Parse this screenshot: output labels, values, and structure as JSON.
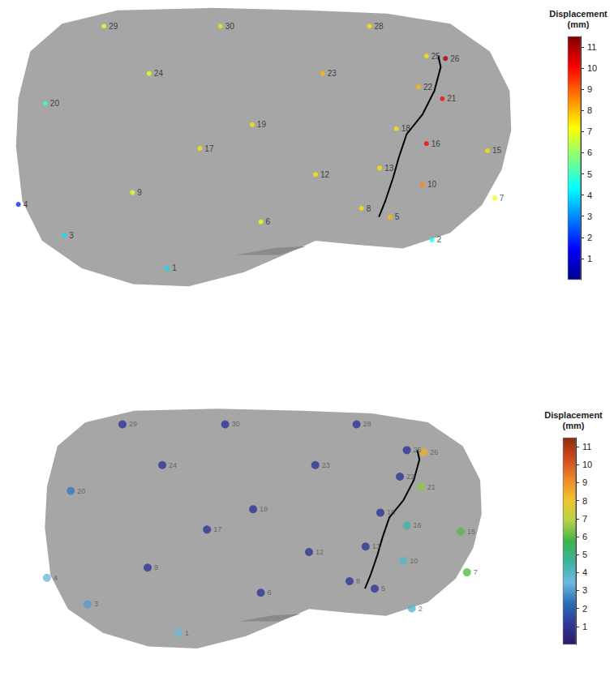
{
  "chart_data": [
    {
      "type": "scatter",
      "points": [
        1,
        2,
        3,
        4,
        5,
        6,
        7,
        8,
        9,
        10,
        12,
        13,
        15,
        16,
        17,
        18,
        19,
        20,
        21,
        22,
        23,
        24,
        25,
        26,
        28,
        29,
        30
      ],
      "x": [
        203,
        537,
        73,
        15,
        484,
        321,
        616,
        448,
        159,
        525,
        390,
        471,
        607,
        530,
        244,
        492,
        310,
        49,
        550,
        520,
        399,
        180,
        530,
        554,
        458,
        123,
        270
      ],
      "y": [
        35,
        71,
        77,
        116,
        100,
        94,
        124,
        111,
        131,
        141,
        154,
        162,
        184,
        193,
        187,
        212,
        217,
        244,
        250,
        265,
        282,
        282,
        304,
        301,
        342,
        342,
        342
      ],
      "values": [
        4,
        4.5,
        4,
        2,
        8,
        7,
        7,
        7.5,
        7,
        8.5,
        7.5,
        7.5,
        7.5,
        10,
        7.5,
        7.5,
        7.5,
        5,
        10,
        8,
        8,
        7,
        7.5,
        11,
        7.5,
        7,
        7.5
      ],
      "xlim": [
        0,
        650
      ],
      "ylim": [
        0,
        370
      ],
      "tick_labels": false,
      "grid": false,
      "color_bar": {
        "title": "Displacement (mm)",
        "range": [
          0,
          11.5
        ],
        "ticks": [
          1,
          2,
          3,
          4,
          5,
          6,
          7,
          8,
          9,
          10,
          11
        ],
        "colors": [
          "#00008f",
          "#0000ff",
          "#0080ff",
          "#00ffff",
          "#80ff80",
          "#ffff00",
          "#ff8000",
          "#ff0000",
          "#800000"
        ]
      }
    },
    {
      "type": "scatter",
      "points": [
        1,
        2,
        3,
        4,
        5,
        6,
        7,
        8,
        9,
        10,
        12,
        13,
        15,
        16,
        17,
        18,
        19,
        20,
        21,
        22,
        23,
        24,
        25,
        26,
        28,
        29,
        30
      ],
      "x": [
        203,
        537,
        73,
        15,
        484,
        321,
        616,
        448,
        159,
        525,
        390,
        471,
        607,
        530,
        244,
        492,
        310,
        49,
        550,
        520,
        399,
        180,
        530,
        554,
        458,
        123,
        270
      ],
      "y": [
        35,
        71,
        77,
        116,
        100,
        94,
        124,
        111,
        131,
        141,
        154,
        162,
        184,
        193,
        187,
        212,
        217,
        244,
        250,
        265,
        282,
        282,
        304,
        301,
        342,
        342,
        342
      ],
      "values": [
        3.5,
        4,
        3,
        3.5,
        1,
        1,
        6,
        1,
        1,
        4,
        1,
        1,
        6,
        4.5,
        1,
        1,
        1,
        2.5,
        6.5,
        1,
        1,
        1,
        1,
        8.5,
        1,
        1,
        1
      ],
      "xlim": [
        0,
        650
      ],
      "ylim": [
        0,
        370
      ],
      "tick_labels": false,
      "grid": false,
      "color_bar": {
        "title": "Displacement (mm)",
        "range": [
          0,
          11.5
        ],
        "ticks": [
          1,
          2,
          3,
          4,
          5,
          6,
          7,
          8,
          9,
          10,
          11
        ],
        "colors": [
          "#2b1a66",
          "#2e3a9a",
          "#2a6fb5",
          "#6fb9de",
          "#3bb3a0",
          "#3fb34a",
          "#b8d24a",
          "#f2c22e",
          "#e88a2a",
          "#d04a1e",
          "#8b2a10"
        ]
      }
    }
  ]
}
